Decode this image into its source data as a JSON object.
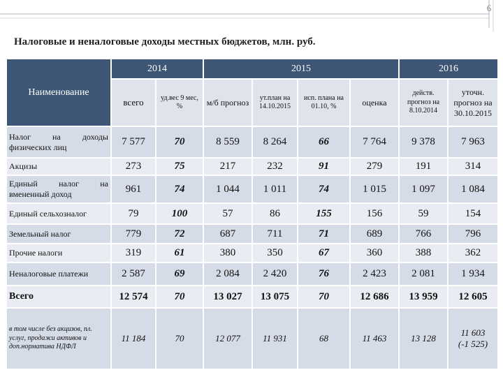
{
  "header": {
    "page_number": "6",
    "title": "Налоговые и неналоговые доходы местных бюджетов, млн. руб."
  },
  "table": {
    "group_headers": [
      "Наименование",
      "2014",
      "2015",
      "2016"
    ],
    "column_headers": [
      "всего",
      "уд.вес 9 мес, %",
      "м/б прогноз",
      "ут.план на 14.10.2015",
      "исп. плана на 01.10, %",
      "оценка",
      "действ. прогноз на 8.10.2014",
      "уточн. прогноз на 30.10.2015"
    ],
    "rows": [
      [
        "Налог на доходы физических лиц",
        "7 577",
        "70",
        "8 559",
        "8 264",
        "66",
        "7 764",
        "9 378",
        "7 963"
      ],
      [
        "Акцизы",
        "273",
        "75",
        "217",
        "232",
        "91",
        "279",
        "191",
        "314"
      ],
      [
        "Единый налог на вмененный доход",
        "961",
        "74",
        "1 044",
        "1 011",
        "74",
        "1 015",
        "1 097",
        "1 084"
      ],
      [
        "Единый сельхозналог",
        "79",
        "100",
        "57",
        "86",
        "155",
        "156",
        "59",
        "154"
      ],
      [
        "Земельный налог",
        "779",
        "72",
        "687",
        "711",
        "71",
        "689",
        "766",
        "796"
      ],
      [
        "Прочие налоги",
        "319",
        "61",
        "380",
        "350",
        "67",
        "360",
        "388",
        "362"
      ],
      [
        "Неналоговые платежи",
        "2 587",
        "69",
        "2 084",
        "2 420",
        "76",
        "2 423",
        "2 081",
        "1 934"
      ],
      [
        "Всего",
        "12 574",
        "70",
        "13 027",
        "13 075",
        "70",
        "12 686",
        "13 959",
        "12 605"
      ],
      [
        "в том числе без акцизов, пл. услуг, продажи активов и доп.норматива НДФЛ",
        "11 184",
        "70",
        "12 077",
        "11 931",
        "68",
        "11 463",
        "13 128",
        "11 603\n(-1 525)"
      ]
    ]
  }
}
